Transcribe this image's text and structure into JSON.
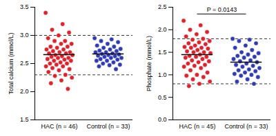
{
  "chart_data": [
    {
      "type": "strip",
      "y_label": "Total calcium (mmol/L)",
      "categories": [
        "HAC (n = 46)",
        "Control (n = 33)"
      ],
      "groups": [
        {
          "color": "#e0202a",
          "mean": 2.66,
          "values": [
            3.4,
            3.2,
            3.1,
            3.05,
            3.0,
            2.95,
            2.9,
            2.9,
            2.85,
            2.85,
            2.8,
            2.8,
            2.78,
            2.75,
            2.75,
            2.72,
            2.7,
            2.7,
            2.68,
            2.68,
            2.65,
            2.65,
            2.63,
            2.62,
            2.6,
            2.6,
            2.58,
            2.57,
            2.55,
            2.55,
            2.52,
            2.5,
            2.5,
            2.48,
            2.45,
            2.45,
            2.42,
            2.4,
            2.38,
            2.35,
            2.3,
            2.28,
            2.25,
            2.2,
            2.15,
            2.05
          ]
        },
        {
          "color": "#2e3bb5",
          "mean": 2.67,
          "values": [
            2.95,
            2.93,
            2.9,
            2.88,
            2.85,
            2.82,
            2.8,
            2.78,
            2.76,
            2.75,
            2.73,
            2.72,
            2.7,
            2.7,
            2.68,
            2.67,
            2.66,
            2.65,
            2.64,
            2.63,
            2.62,
            2.6,
            2.6,
            2.58,
            2.57,
            2.55,
            2.55,
            2.52,
            2.5,
            2.48,
            2.47,
            2.45,
            2.4
          ]
        }
      ],
      "reference_lines": [
        2.3,
        3.0
      ],
      "ylim": [
        1.5,
        3.5
      ],
      "yticks": [
        1.5,
        {
          "value": 2,
          "label": "2.0"
        },
        2.5,
        {
          "value": 3,
          "label": "3.0"
        },
        3.5
      ]
    },
    {
      "type": "strip",
      "y_label": "Phosphate (mmol/L)",
      "categories": [
        "HAC (n = 45)",
        "Control (n = 33)"
      ],
      "groups": [
        {
          "color": "#e0202a",
          "mean": 1.45,
          "values": [
            2.2,
            2.1,
            2.0,
            1.95,
            1.9,
            1.85,
            1.8,
            1.78,
            1.75,
            1.72,
            1.7,
            1.68,
            1.65,
            1.62,
            1.6,
            1.6,
            1.58,
            1.55,
            1.52,
            1.5,
            1.5,
            1.48,
            1.45,
            1.42,
            1.4,
            1.4,
            1.38,
            1.35,
            1.32,
            1.3,
            1.28,
            1.25,
            1.22,
            1.2,
            1.18,
            1.15,
            1.1,
            1.05,
            1.0,
            0.98,
            0.95,
            0.9,
            0.85,
            0.8,
            0.75
          ]
        },
        {
          "color": "#2e3bb5",
          "mean": 1.28,
          "values": [
            1.8,
            1.78,
            1.75,
            1.7,
            1.65,
            1.6,
            1.55,
            1.5,
            1.48,
            1.45,
            1.42,
            1.4,
            1.38,
            1.35,
            1.32,
            1.3,
            1.28,
            1.25,
            1.22,
            1.2,
            1.18,
            1.15,
            1.12,
            1.1,
            1.08,
            1.05,
            1.02,
            1.0,
            0.98,
            0.95,
            0.9,
            0.85,
            0.8
          ]
        }
      ],
      "reference_lines": [
        0.8,
        1.8
      ],
      "annotation": "P = 0.0143",
      "ylim": [
        0,
        2.5
      ],
      "yticks": [
        {
          "value": 0,
          "label": "0.0"
        },
        0.5,
        {
          "value": 1,
          "label": "1.0"
        },
        1.5,
        {
          "value": 2,
          "label": "2.0"
        },
        2.5
      ]
    }
  ]
}
